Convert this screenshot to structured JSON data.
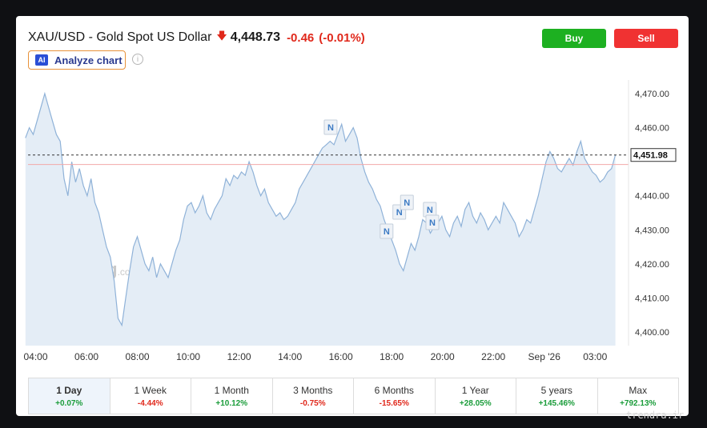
{
  "header": {
    "instrument": "XAU/USD - Gold Spot US Dollar",
    "price": "4,448.73",
    "change": "-0.46",
    "change_pct": "(-0.01%)",
    "analyze_label": "Analyze chart",
    "ai_badge": "AI",
    "info_glyph": "i",
    "buy_label": "Buy",
    "sell_label": "Sell"
  },
  "colors": {
    "accent_down": "#e0281b",
    "accent_up": "#1a9c3a",
    "line": "#8fb2d8",
    "area": "#e4edf6",
    "buy": "#1db021",
    "sell": "#f03232"
  },
  "chart_data": {
    "type": "area",
    "title": "",
    "xlabel": "",
    "ylabel": "",
    "x_ticks": [
      "04:00",
      "06:00",
      "08:00",
      "10:00",
      "12:00",
      "14:00",
      "16:00",
      "18:00",
      "20:00",
      "22:00",
      "Sep '26",
      "03:00"
    ],
    "y_ticks": [
      "4,400.00",
      "4,410.00",
      "4,420.00",
      "4,430.00",
      "4,440.00",
      "4,460.00",
      "4,470.00"
    ],
    "ylim": [
      4396,
      4474
    ],
    "grid": false,
    "current_price_label": "4,451.98",
    "current_price": 4451.98,
    "reference_price": 4449.19,
    "news_marker_label": "N",
    "series": [
      {
        "values": [
          4457,
          4460,
          4458,
          4462,
          4466,
          4470,
          4466,
          4462,
          4458,
          4456,
          4445,
          4440,
          4450,
          4444,
          4448,
          4443,
          4440,
          4445,
          4438,
          4435,
          4430,
          4425,
          4422,
          4415,
          4404,
          4402,
          4410,
          4418,
          4425,
          4428,
          4424,
          4420,
          4418,
          4422,
          4416,
          4420,
          4418,
          4416,
          4420,
          4424,
          4427,
          4433,
          4437,
          4438,
          4435,
          4437,
          4440,
          4435,
          4433,
          4436,
          4438,
          4440,
          4445,
          4443,
          4446,
          4445,
          4447,
          4446,
          4450,
          4447,
          4443,
          4440,
          4442,
          4438,
          4436,
          4434,
          4435,
          4433,
          4434,
          4436,
          4438,
          4442,
          4444,
          4446,
          4448,
          4450,
          4452,
          4454,
          4455,
          4456,
          4455,
          4458,
          4461,
          4456,
          4458,
          4460,
          4457,
          4451,
          4447,
          4444,
          4442,
          4439,
          4437,
          4433,
          4430,
          4427,
          4424,
          4420,
          4418,
          4422,
          4426,
          4424,
          4428,
          4433,
          4432,
          4429,
          4431,
          4432,
          4434,
          4430,
          4428,
          4432,
          4434,
          4431,
          4436,
          4438,
          4434,
          4432,
          4435,
          4433,
          4430,
          4432,
          4434,
          4432,
          4438,
          4436,
          4434,
          4432,
          4428,
          4430,
          4433,
          4432,
          4436,
          4440,
          4445,
          4450,
          4453,
          4451,
          4448,
          4447,
          4449,
          4451,
          4449,
          4453,
          4456,
          4451,
          4449,
          4447,
          4446,
          4444,
          4445,
          4447,
          4448,
          4452
        ],
        "x_start_hour": 3.6,
        "x_end_hour": 26.8
      }
    ],
    "news_markers_hour": [
      15.6,
      17.8,
      18.3,
      18.6,
      19.5,
      19.6
    ]
  },
  "tabs": [
    {
      "label": "1 Day",
      "change": "+0.07%",
      "sign": "pos",
      "active": true
    },
    {
      "label": "1 Week",
      "change": "-4.44%",
      "sign": "neg",
      "active": false
    },
    {
      "label": "1 Month",
      "change": "+10.12%",
      "sign": "pos",
      "active": false
    },
    {
      "label": "3 Months",
      "change": "-0.75%",
      "sign": "neg",
      "active": false
    },
    {
      "label": "6 Months",
      "change": "-15.65%",
      "sign": "neg",
      "active": false
    },
    {
      "label": "1 Year",
      "change": "+28.05%",
      "sign": "pos",
      "active": false
    },
    {
      "label": "5 years",
      "change": "+145.46%",
      "sign": "pos",
      "active": false
    },
    {
      "label": "Max",
      "change": "+792.13%",
      "sign": "pos",
      "active": false
    }
  ],
  "branding": {
    "chart_watermark": "Investing",
    "chart_watermark_suffix": ".com",
    "corner_watermark": "trendra.ir"
  }
}
